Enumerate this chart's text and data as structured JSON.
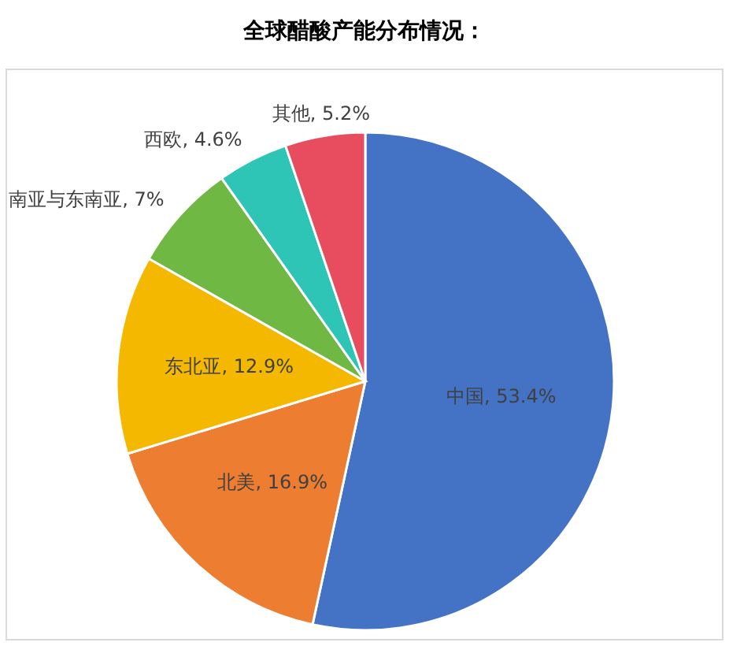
{
  "chart_data": {
    "type": "pie",
    "title": "全球醋酸产能分布情况：",
    "categories": [
      "中国",
      "北美",
      "东北亚",
      "南亚与东南亚",
      "西欧",
      "其他"
    ],
    "values": [
      53.4,
      16.9,
      12.9,
      7,
      4.6,
      5.2
    ],
    "colors": [
      "#4472c4",
      "#ed7d31",
      "#f4b800",
      "#70b844",
      "#2ec4b6",
      "#e84c5f"
    ],
    "value_labels": [
      "53.4%",
      "16.9%",
      "12.9%",
      "7%",
      "4.6%",
      "5.2%"
    ]
  }
}
